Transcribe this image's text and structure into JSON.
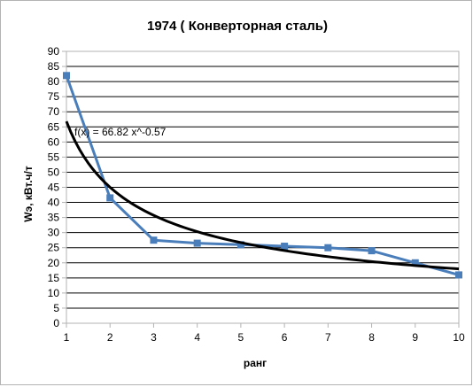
{
  "chart_data": {
    "type": "line",
    "title": "1974 ( Конверторная сталь)",
    "xlabel": "ранг",
    "ylabel": "Wэ, кВт.ч/т",
    "xlim": [
      1,
      10
    ],
    "ylim": [
      0,
      90
    ],
    "x_ticks": [
      1,
      2,
      3,
      4,
      5,
      6,
      7,
      8,
      9,
      10
    ],
    "y_ticks": [
      0,
      5,
      10,
      15,
      20,
      25,
      30,
      35,
      40,
      45,
      50,
      55,
      60,
      65,
      70,
      75,
      80,
      85,
      90
    ],
    "grid": "horizontal",
    "series": [
      {
        "x": [
          1,
          2,
          3,
          4,
          5,
          6,
          7,
          8,
          9,
          10
        ],
        "y": [
          82,
          41.5,
          27.5,
          26.5,
          26,
          25.5,
          25,
          24,
          20,
          16
        ],
        "color": "#4a7ebb",
        "marker": "square"
      }
    ],
    "trendline": {
      "type": "power",
      "a": 66.82,
      "b": -0.57,
      "color": "#000000"
    },
    "annotation": "f(x) = 66.82 x^-0.57"
  }
}
